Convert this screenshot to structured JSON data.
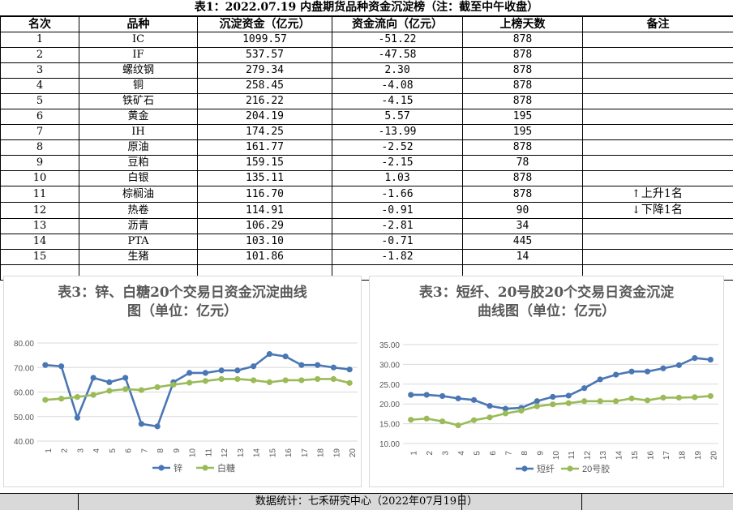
{
  "sheet_title": "表1：2022.07.19 内盘期货品种资金沉淀榜（注：截至中午收盘）",
  "columns": [
    "名次",
    "品种",
    "沉淀资金（亿元）",
    "资金流向（亿元）",
    "上榜天数",
    "备注"
  ],
  "rows": [
    {
      "rank": "1",
      "name": "IC",
      "capital": "1099.57",
      "flow": "-51.22",
      "days": "878"
    },
    {
      "rank": "2",
      "name": "IF",
      "capital": "537.57",
      "flow": "-47.58",
      "days": "878"
    },
    {
      "rank": "3",
      "name": "螺纹钢",
      "capital": "279.34",
      "flow": "2.30",
      "days": "878"
    },
    {
      "rank": "4",
      "name": "铜",
      "capital": "258.45",
      "flow": "-4.08",
      "days": "878"
    },
    {
      "rank": "5",
      "name": "铁矿石",
      "capital": "216.22",
      "flow": "-4.15",
      "days": "878"
    },
    {
      "rank": "6",
      "name": "黄金",
      "capital": "204.19",
      "flow": "5.57",
      "days": "195"
    },
    {
      "rank": "7",
      "name": "IH",
      "capital": "174.25",
      "flow": "-13.99",
      "days": "195"
    },
    {
      "rank": "8",
      "name": "原油",
      "capital": "161.77",
      "flow": "-2.52",
      "days": "878"
    },
    {
      "rank": "9",
      "name": "豆粕",
      "capital": "159.15",
      "flow": "-2.15",
      "days": "78"
    },
    {
      "rank": "10",
      "name": "白银",
      "capital": "135.11",
      "flow": "1.03",
      "days": "878"
    },
    {
      "rank": "11",
      "name": "棕榈油",
      "capital": "116.70",
      "flow": "-1.66",
      "days": "878"
    },
    {
      "rank": "12",
      "name": "热卷",
      "capital": "114.91",
      "flow": "-0.91",
      "days": "90"
    },
    {
      "rank": "13",
      "name": "沥青",
      "capital": "106.29",
      "flow": "-2.81",
      "days": "34"
    },
    {
      "rank": "14",
      "name": "PTA",
      "capital": "103.10",
      "flow": "-0.71",
      "days": "445"
    },
    {
      "rank": "15",
      "name": "生猪",
      "capital": "101.86",
      "flow": "-1.82",
      "days": "14"
    }
  ],
  "notes": {
    "up_arrow": "↑",
    "up_label": "上升1名",
    "down_arrow": "↓",
    "down_label": "下降1名"
  },
  "footer": "数据统计：七禾研究中心（2022年07月19日）",
  "chart_data": [
    {
      "type": "line",
      "title": "表3：锌、白糖20个交易日资金沉淀曲线图（单位：亿元）",
      "title_lines": [
        "表3：锌、白糖20个交易日资金沉淀曲线",
        "图（单位：亿元）"
      ],
      "x": [
        "1",
        "2",
        "3",
        "4",
        "5",
        "6",
        "7",
        "8",
        "9",
        "10",
        "11",
        "12",
        "13",
        "14",
        "15",
        "16",
        "17",
        "18",
        "19",
        "20"
      ],
      "ylim": [
        40,
        80
      ],
      "yticks": [
        "40.00",
        "50.00",
        "60.00",
        "70.00",
        "80.00"
      ],
      "grid": true,
      "legend": "bottom",
      "series": [
        {
          "name": "锌",
          "color": "#4a77b4",
          "values": [
            71.0,
            70.5,
            49.5,
            65.8,
            64.0,
            65.8,
            47.0,
            46.0,
            64.0,
            67.8,
            67.8,
            68.8,
            68.8,
            70.5,
            75.5,
            74.5,
            71.0,
            71.0,
            70.0,
            69.2
          ]
        },
        {
          "name": "白糖",
          "color": "#9bbb59",
          "values": [
            56.8,
            57.3,
            58.0,
            58.8,
            60.5,
            61.2,
            60.8,
            62.0,
            63.0,
            63.8,
            64.5,
            65.3,
            65.3,
            64.8,
            64.0,
            64.8,
            64.8,
            65.3,
            65.3,
            63.7
          ]
        }
      ]
    },
    {
      "type": "line",
      "title": "表3：短纤、20号胶20个交易日资金沉淀曲线图（单位：亿元）",
      "title_lines": [
        "表3：短纤、20号胶20个交易日资金沉淀",
        "曲线图（单位：亿元）"
      ],
      "x": [
        "1",
        "2",
        "3",
        "4",
        "5",
        "6",
        "7",
        "8",
        "9",
        "10",
        "11",
        "12",
        "13",
        "14",
        "15",
        "16",
        "17",
        "18",
        "19",
        "20"
      ],
      "ylim": [
        10,
        35
      ],
      "yticks": [
        "10.00",
        "15.00",
        "20.00",
        "25.00",
        "30.00",
        "35.00"
      ],
      "grid": true,
      "legend": "bottom",
      "series": [
        {
          "name": "短纤",
          "color": "#4a77b4",
          "values": [
            22.3,
            22.3,
            22.0,
            21.4,
            21.0,
            19.5,
            18.8,
            19.0,
            20.7,
            21.8,
            22.1,
            24.0,
            26.2,
            27.4,
            28.2,
            28.2,
            29.0,
            29.8,
            31.6,
            31.2
          ]
        },
        {
          "name": "20号胶",
          "color": "#9bbb59",
          "values": [
            16.0,
            16.3,
            15.6,
            14.6,
            15.9,
            16.6,
            17.6,
            18.3,
            19.4,
            19.9,
            20.2,
            20.7,
            20.7,
            20.7,
            21.4,
            20.9,
            21.6,
            21.6,
            21.7,
            22.0
          ]
        }
      ]
    }
  ]
}
